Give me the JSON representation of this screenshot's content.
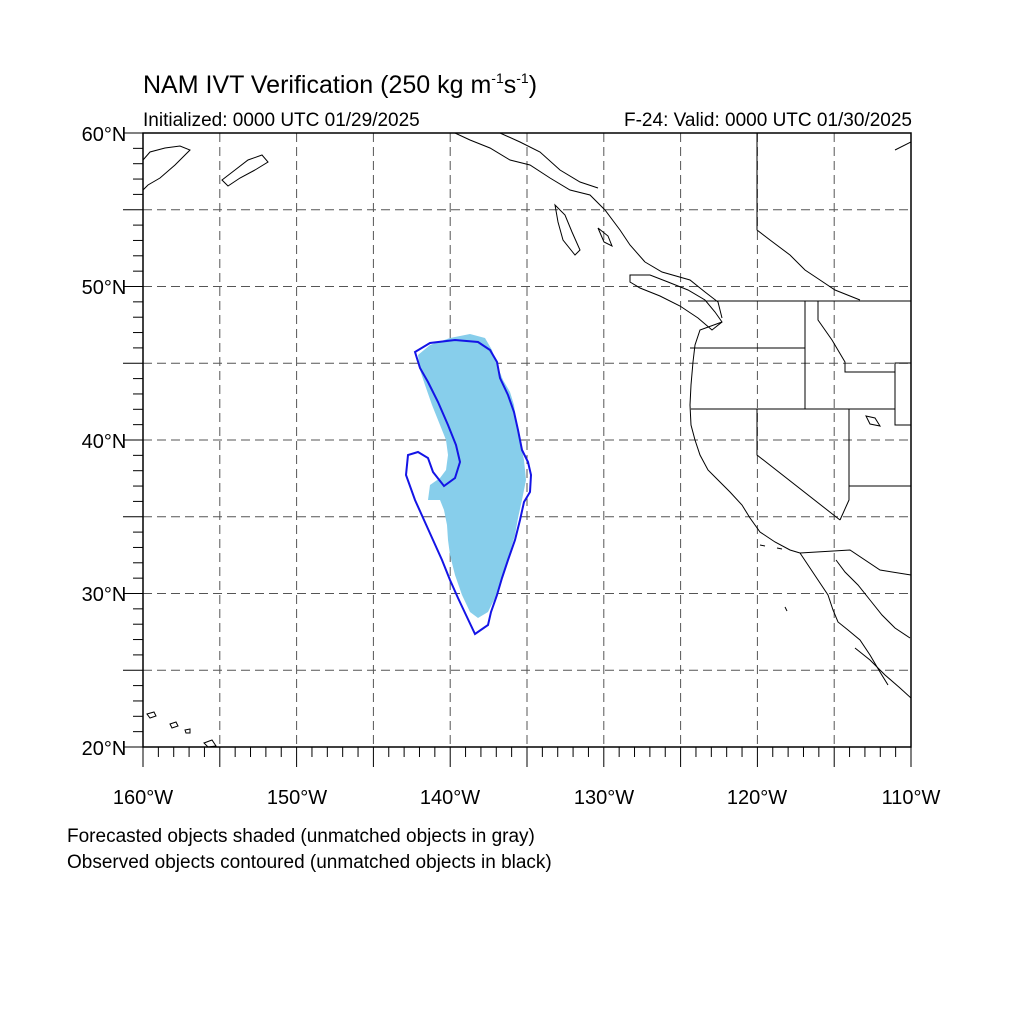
{
  "title": {
    "text": "NAM IVT Verification (250 kg m",
    "sup1": "-1",
    "mid": "s",
    "sup2": "-1",
    "end": ")"
  },
  "init_label": "Initialized: 0000 UTC 01/29/2025",
  "valid_label": "F-24: Valid: 0000 UTC 01/30/2025",
  "lat_labels": [
    "60°N",
    "50°N",
    "40°N",
    "30°N",
    "20°N"
  ],
  "lon_labels": [
    "160°W",
    "150°W",
    "140°W",
    "130°W",
    "120°W",
    "110°W"
  ],
  "notes": {
    "forecast": "Forecasted objects shaded (unmatched objects in gray)",
    "observed": "Observed objects contoured (unmatched objects in black)"
  },
  "colors": {
    "forecast_fill": "#87ceeb",
    "observed_contour": "#1414e6",
    "coast": "#000000",
    "grid": "#555555"
  },
  "map": {
    "lon_range": [
      -160,
      -110
    ],
    "lat_range": [
      20,
      60
    ],
    "grid_lon_step": 5,
    "grid_lat_step": 5,
    "forecast_object_extent": {
      "lon": [
        -141,
        -135
      ],
      "lat": [
        28,
        46.5
      ]
    },
    "observed_object_extent": {
      "lon": [
        -142.5,
        -134.5
      ],
      "lat": [
        27.5,
        46.5
      ]
    }
  }
}
